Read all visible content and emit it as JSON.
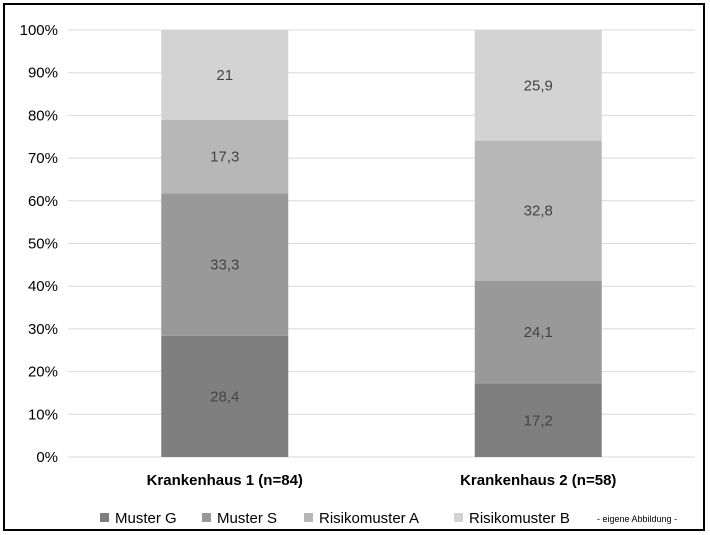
{
  "chart_data": {
    "type": "bar",
    "stacked": true,
    "categories": [
      "Krankenhaus 1 (n=84)",
      "Krankenhaus 2 (n=58)"
    ],
    "series": [
      {
        "name": "Muster G",
        "values": [
          28.4,
          17.2
        ],
        "labels": [
          "28,4",
          "17,2"
        ],
        "color": "#7f7f7f"
      },
      {
        "name": "Muster S",
        "values": [
          33.3,
          24.1
        ],
        "labels": [
          "33,3",
          "24,1"
        ],
        "color": "#999999"
      },
      {
        "name": "Risikomuster A",
        "values": [
          17.3,
          32.8
        ],
        "labels": [
          "17,3",
          "32,8"
        ],
        "color": "#b7b7b7"
      },
      {
        "name": "Risikomuster B",
        "values": [
          21,
          25.9
        ],
        "labels": [
          "21",
          "25,9"
        ],
        "color": "#d3d3d3"
      }
    ],
    "yticks": [
      "0%",
      "10%",
      "20%",
      "30%",
      "40%",
      "50%",
      "60%",
      "70%",
      "80%",
      "90%",
      "100%"
    ],
    "ylim": [
      0,
      100
    ],
    "grid": true,
    "legend": "bottom",
    "note": "- eigene Abbildung -"
  }
}
